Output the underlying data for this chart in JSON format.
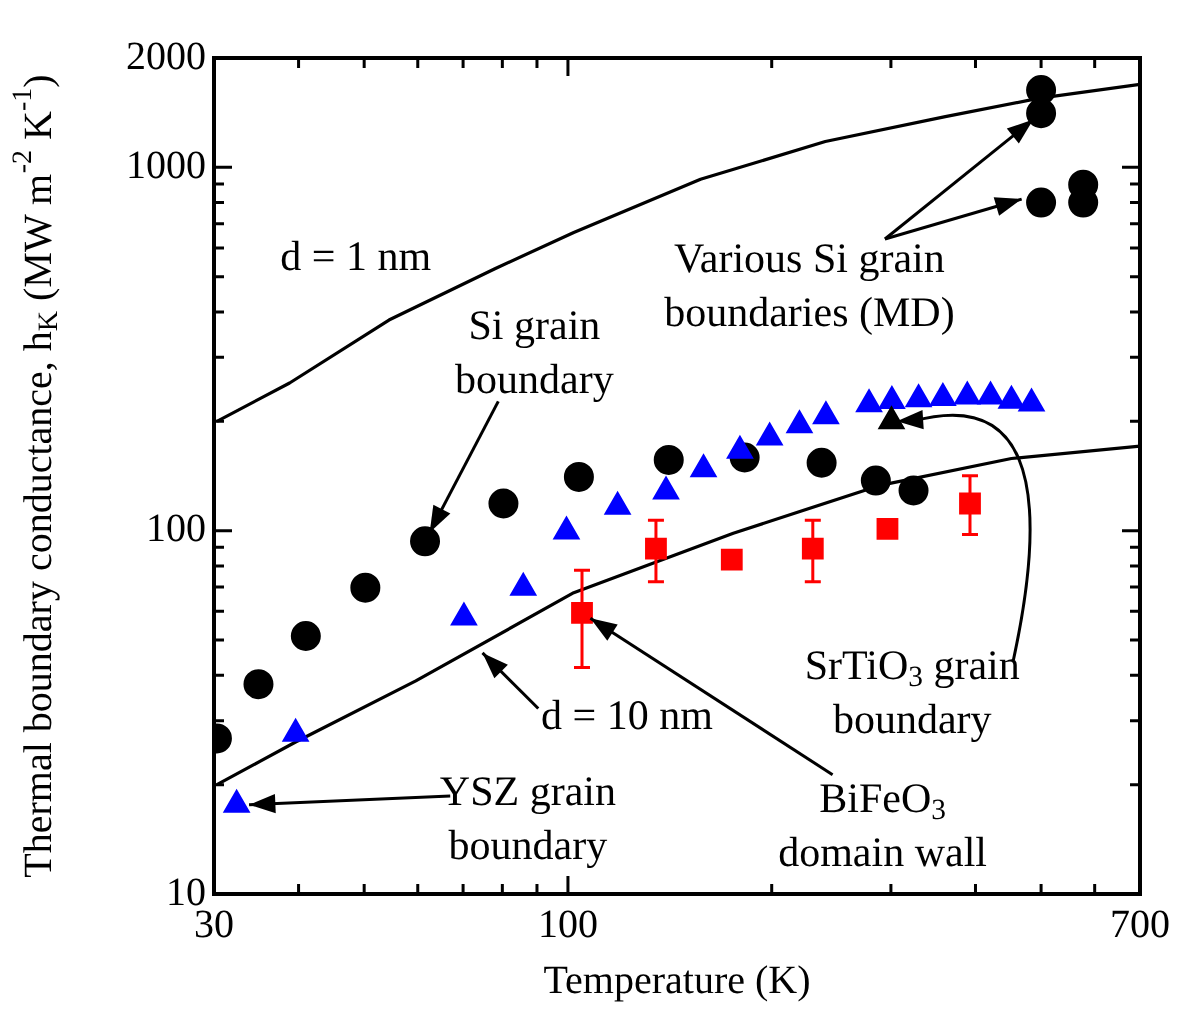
{
  "chart_data": {
    "type": "scatter",
    "xlabel": "Temperature (K)",
    "ylabel": "Thermal boundary conductance, h$_{K}$ (MW m$^{-2}$ K$^{-1}$)",
    "log": "xy",
    "grid": false,
    "legend": false,
    "xlim": [
      30,
      700
    ],
    "xticks": [
      30,
      {
        "value": 40,
        "label": null
      },
      {
        "value": 50,
        "label": null
      },
      {
        "value": 60,
        "label": null
      },
      {
        "value": 70,
        "label": null
      },
      {
        "value": 80,
        "label": null
      },
      {
        "value": 90,
        "label": null
      },
      100,
      {
        "value": 200,
        "label": null
      },
      {
        "value": 300,
        "label": null
      },
      {
        "value": 400,
        "label": null
      },
      {
        "value": 500,
        "label": null
      },
      {
        "value": 600,
        "label": null
      },
      700
    ],
    "ylim": [
      10,
      2000
    ],
    "yticks": [
      10,
      {
        "value": 20,
        "label": null
      },
      {
        "value": 30,
        "label": null
      },
      {
        "value": 40,
        "label": null
      },
      {
        "value": 50,
        "label": null
      },
      {
        "value": 60,
        "label": null
      },
      {
        "value": 70,
        "label": null
      },
      {
        "value": 80,
        "label": null
      },
      {
        "value": 90,
        "label": null
      },
      100,
      {
        "value": 200,
        "label": null
      },
      {
        "value": 300,
        "label": null
      },
      {
        "value": 400,
        "label": null
      },
      {
        "value": 500,
        "label": null
      },
      {
        "value": 600,
        "label": null
      },
      {
        "value": 700,
        "label": null
      },
      {
        "value": 800,
        "label": null
      },
      {
        "value": 900,
        "label": null
      },
      1000,
      2000
    ],
    "series": [
      {
        "type": "line",
        "color": "#000000",
        "marker": "none",
        "x": [
          30.3,
          38.8,
          54.4,
          78,
          102,
          157,
          240,
          361,
          495,
          700
        ],
        "values": [
          200,
          255,
          380,
          526,
          662,
          927,
          1178,
          1379,
          1548,
          1692
        ]
      },
      {
        "type": "line",
        "color": "#000000",
        "marker": "none",
        "x": [
          30.3,
          39.6,
          59.6,
          102,
          175.5,
          288,
          452,
          700
        ],
        "values": [
          20.0,
          26.2,
          38.6,
          67.5,
          98.4,
          133,
          158,
          171
        ]
      },
      {
        "type": "scatter",
        "color": "#000000",
        "marker": "circle",
        "x": [
          30.3,
          34.9,
          41.0,
          50.2,
          61.5,
          80.3,
          103.8,
          140.9,
          182.4,
          237,
          285,
          324
        ],
        "values": [
          26.8,
          37.8,
          51.3,
          69.7,
          93.5,
          118.8,
          140.6,
          156.6,
          159,
          153.8,
          137.4,
          129
        ]
      },
      {
        "type": "scatter",
        "color": "#0000ff",
        "marker": "triangle",
        "x": [
          32.4,
          39.6,
          70.2,
          85.9,
          99.5,
          118.4,
          139.6,
          158.6,
          179.5,
          198.6,
          219.8,
          240.5,
          278.5,
          301,
          329.6,
          358,
          389,
          421,
          452,
          484
        ],
        "values": [
          17.6,
          27.6,
          57.7,
          69.7,
          99.5,
          116.4,
          128.2,
          147.6,
          166,
          180.6,
          195,
          206.6,
          223,
          227.6,
          230,
          232,
          234,
          234,
          228,
          224
        ]
      },
      {
        "type": "scatter",
        "color": "#ff0000",
        "marker": "square",
        "x": [
          104.9,
          134.9,
          174.6,
          230,
          296.5,
          392.6
        ],
        "values": [
          59.4,
          89.3,
          83.2,
          89.3,
          101.2,
          118.8
        ],
        "errors": [
          [
            42.0,
            77.8
          ],
          [
            72.4,
            106.9
          ],
          null,
          [
            72.4,
            106.9
          ],
          null,
          [
            97.6,
            141.6
          ]
        ]
      },
      {
        "type": "scatter",
        "color": "#000000",
        "marker": "triangle",
        "x": [
          300.6
        ],
        "values": [
          200
        ]
      },
      {
        "type": "scatter",
        "color": "#000000",
        "marker": "circle",
        "x": [
          500,
          500,
          500,
          577,
          577
        ],
        "values": [
          1633,
          1409,
          800,
          896,
          800
        ]
      }
    ],
    "annotations": [
      "d = 1 nm",
      {
        "text": "Si grain\nboundary",
        "x": 61.5,
        "y": 93.5
      },
      {
        "text": "Various Si grain\nboundaries (MD)",
        "x": 500,
        "y": 1409
      },
      "SrTiO$_{3}$ grain\nboundary",
      {
        "text": "BiFeO$_{3}$\ndomain wall",
        "x": 104.9,
        "y": 59.4
      },
      {
        "text": "d = 10 nm",
        "x": 73,
        "y": 48.2
      },
      "YSZ grain\nboundary"
    ]
  }
}
